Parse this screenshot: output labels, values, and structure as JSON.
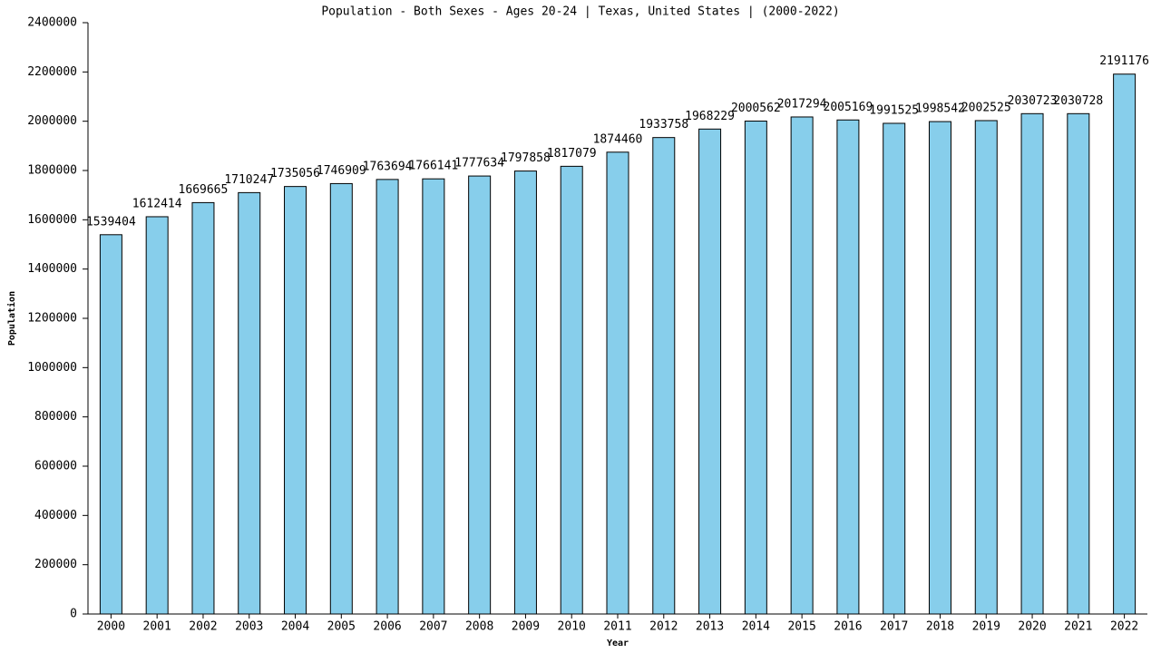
{
  "chart_data": {
    "type": "bar",
    "title": "Population - Both Sexes - Ages 20-24 | Texas, United States |  (2000-2022)",
    "x_label": "Year",
    "y_label": "Population",
    "categories": [
      "2000",
      "2001",
      "2002",
      "2003",
      "2004",
      "2005",
      "2006",
      "2007",
      "2008",
      "2009",
      "2010",
      "2011",
      "2012",
      "2013",
      "2014",
      "2015",
      "2016",
      "2017",
      "2018",
      "2019",
      "2020",
      "2021",
      "2022"
    ],
    "values": [
      1539404,
      1612414,
      1669665,
      1710247,
      1735056,
      1746909,
      1763694,
      1766141,
      1777634,
      1797858,
      1817079,
      1874460,
      1933758,
      1968229,
      2000562,
      2017294,
      2005169,
      1991525,
      1998542,
      2002525,
      2030723,
      2030728,
      2191176
    ],
    "color": "#87ceeb",
    "ylim": [
      0,
      2400000
    ],
    "yticks": [
      0,
      200000,
      400000,
      600000,
      800000,
      1000000,
      1200000,
      1400000,
      1600000,
      1800000,
      2000000,
      2200000,
      2400000
    ]
  }
}
